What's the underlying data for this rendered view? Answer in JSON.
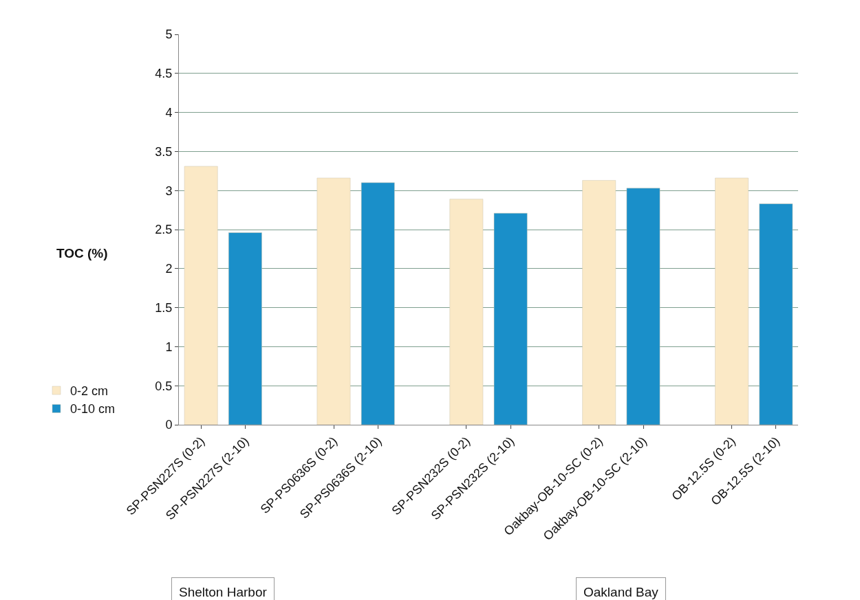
{
  "chart_data": {
    "type": "bar",
    "ylabel": "TOC (%)",
    "categories": [
      "SP-PSN227S (0-2)",
      "SP-PSN227S (2-10)",
      null,
      "SP-PS0636S (0-2)",
      "SP-PS0636S (2-10)",
      null,
      "SP-PSN232S (0-2)",
      "SP-PSN232S (2-10)",
      null,
      "Oakbay-OB-10-SC (0-2)",
      "Oakbay-OB-10-SC (2-10)",
      null,
      "OB-12.5S (0-2)",
      "OB-12.5S (2-10)"
    ],
    "series": [
      {
        "name": "0-2 cm",
        "color": "#fbe9c6",
        "values": [
          3.31,
          null,
          null,
          3.16,
          null,
          null,
          2.89,
          null,
          null,
          3.13,
          null,
          null,
          3.16,
          null
        ]
      },
      {
        "name": "0-10 cm",
        "color": "#1a8fc9",
        "values": [
          null,
          2.46,
          null,
          null,
          3.1,
          null,
          null,
          2.71,
          null,
          null,
          3.03,
          null,
          null,
          2.83
        ]
      }
    ],
    "ylim": [
      0,
      5
    ],
    "yticks": [
      0,
      0.5,
      1,
      1.5,
      2,
      2.5,
      3,
      3.5,
      4,
      4.5,
      5
    ],
    "grid": "y",
    "legend": "bottom left",
    "annotations": [
      "Shelton Harbor",
      "Oakland Bay"
    ]
  }
}
